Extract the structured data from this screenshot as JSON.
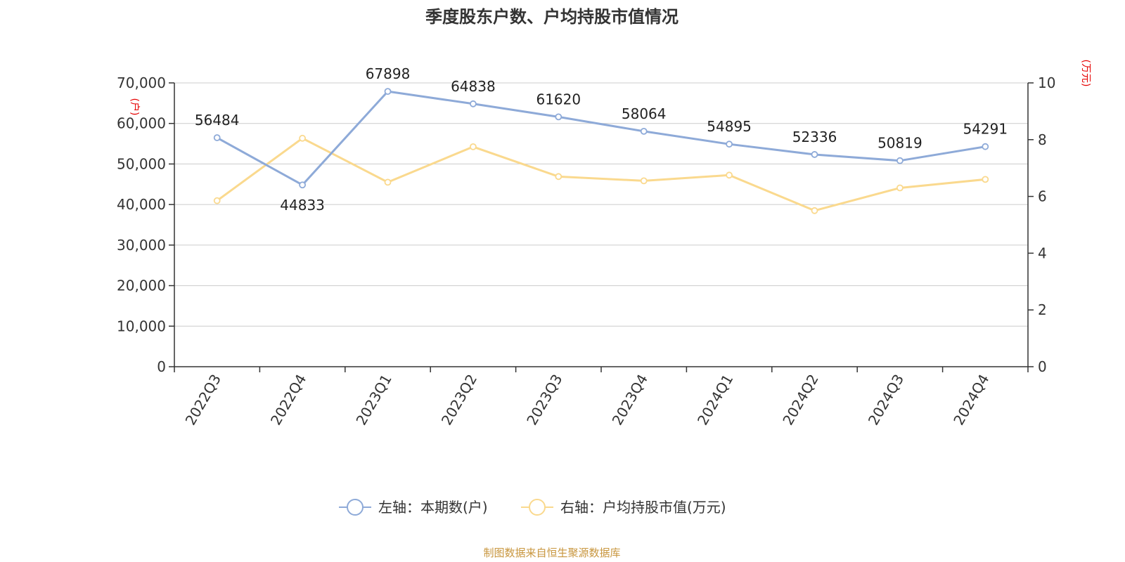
{
  "chart_data": {
    "type": "line",
    "title": "季度股东户数、户均持股市值情况",
    "categories": [
      "2022Q3",
      "2022Q4",
      "2023Q1",
      "2023Q2",
      "2023Q3",
      "2023Q4",
      "2024Q1",
      "2024Q2",
      "2024Q3",
      "2024Q4"
    ],
    "series": [
      {
        "name": "左轴：本期数(户)",
        "axis": "left",
        "color": "#8eaad8",
        "values": [
          56484,
          44833,
          67898,
          64838,
          61620,
          58064,
          54895,
          52336,
          50819,
          54291
        ],
        "data_labels": [
          "56484",
          "44833",
          "67898",
          "64838",
          "61620",
          "58064",
          "54895",
          "52336",
          "50819",
          "54291"
        ]
      },
      {
        "name": "右轴：户均持股市值(万元)",
        "axis": "right",
        "color": "#fad98e",
        "values": [
          5.85,
          8.05,
          6.5,
          7.75,
          6.7,
          6.55,
          6.75,
          5.5,
          6.3,
          6.6
        ]
      }
    ],
    "left_axis": {
      "unit": "(户)",
      "ylim": [
        0,
        70000
      ],
      "ticks": [
        0,
        10000,
        20000,
        30000,
        40000,
        50000,
        60000,
        70000
      ],
      "tick_labels": [
        "0",
        "10,000",
        "20,000",
        "30,000",
        "40,000",
        "50,000",
        "60,000",
        "70,000"
      ]
    },
    "right_axis": {
      "unit": "(万元)",
      "ylim": [
        0,
        10
      ],
      "ticks": [
        0,
        2,
        4,
        6,
        8,
        10
      ],
      "tick_labels": [
        "0",
        "2",
        "4",
        "6",
        "8",
        "10"
      ]
    },
    "grid": true,
    "legend_position": "bottom-center",
    "source": "制图数据来自恒生聚源数据库"
  }
}
